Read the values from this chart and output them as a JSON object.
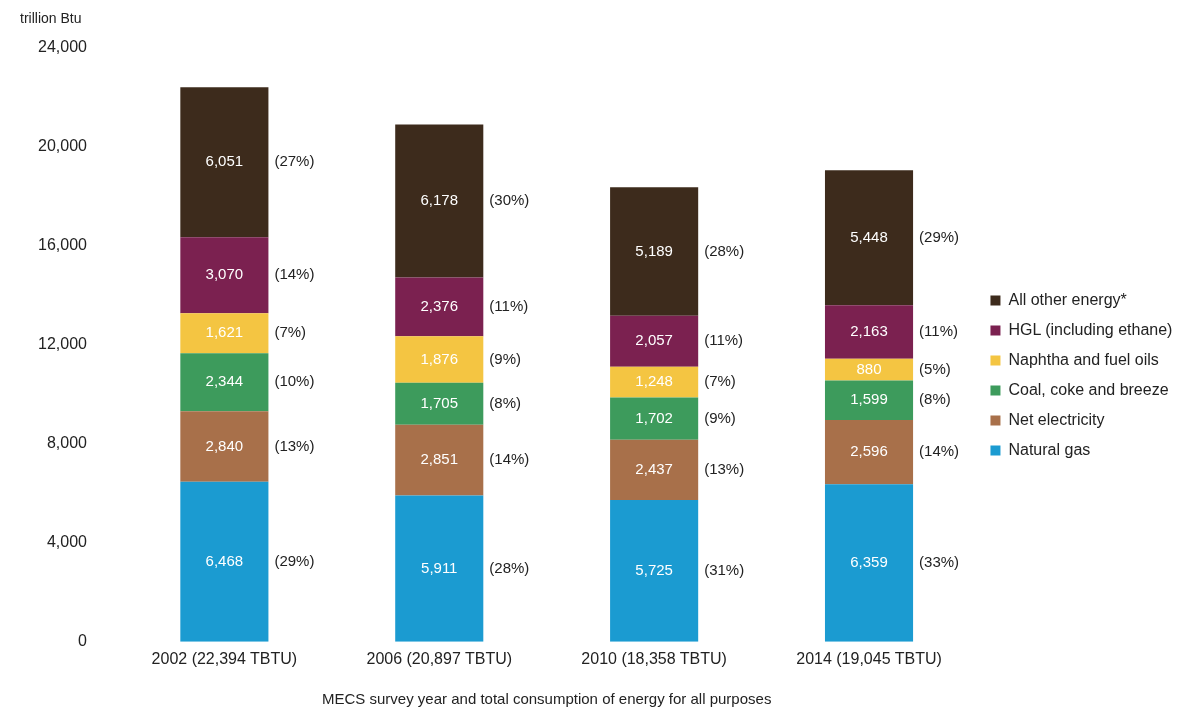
{
  "chart_data": {
    "type": "bar",
    "stacked": true,
    "ylabel": "trillion Btu",
    "xlabel": "MECS survey year and total consumption of energy for all purposes",
    "categories": [
      "2002 (22,394 TBTU)",
      "2006 (20,897 TBTU)",
      "2010 (18,358 TBTU)",
      "2014 (19,045 TBTU)"
    ],
    "series": [
      {
        "name": "Natural gas",
        "color": "#1b9bd1",
        "values": [
          6468,
          5911,
          5725,
          6359
        ],
        "value_labels": [
          "6,468 (29%)",
          "5,911 (28%)",
          "5,725 (31%)",
          "6,359 (33%)"
        ]
      },
      {
        "name": "Net electricity",
        "color": "#a8704a",
        "values": [
          2840,
          2851,
          2437,
          2596
        ],
        "value_labels": [
          "2,840 (13%)",
          "2,851 (14%)",
          "2,437 (13%)",
          "2,596 (14%)"
        ]
      },
      {
        "name": "Coal, coke and breeze",
        "color": "#3d9b5c",
        "values": [
          2344,
          1705,
          1702,
          1599
        ],
        "value_labels": [
          "2,344 (10%)",
          "1,705 (8%)",
          "1,702 (9%)",
          "1,599 (8%)"
        ]
      },
      {
        "name": "Naphtha and fuel oils",
        "color": "#f4c542",
        "values": [
          1621,
          1876,
          1248,
          880
        ],
        "value_labels": [
          "1,621 (7%)",
          "1,876 (9%)",
          "1,248 (7%)",
          "880 (5%)"
        ]
      },
      {
        "name": "HGL (including ethane)",
        "color": "#7b2150",
        "values": [
          3070,
          2376,
          2057,
          2163
        ],
        "value_labels": [
          "3,070 (14%)",
          "2,376 (11%)",
          "2,057 (11%)",
          "2,163 (11%)"
        ]
      },
      {
        "name": "All other energy*",
        "color": "#3d2b1c",
        "values": [
          6051,
          6178,
          5189,
          5448
        ],
        "value_labels": [
          "6,051 (27%)",
          "6,178 (30%)",
          "5,189 (28%)",
          "5,448 (29%)"
        ]
      }
    ],
    "ylim": [
      0,
      24000
    ],
    "yticks": [
      0,
      {
        "value": 4000,
        "label": "4,000"
      },
      {
        "value": 8000,
        "label": "8,000"
      },
      {
        "value": 12000,
        "label": "12,000"
      },
      {
        "value": 16000,
        "label": "16,000"
      },
      {
        "value": 20000,
        "label": "20,000"
      },
      {
        "value": 24000,
        "label": "24,000"
      }
    ],
    "grid": false,
    "legend": "right"
  }
}
